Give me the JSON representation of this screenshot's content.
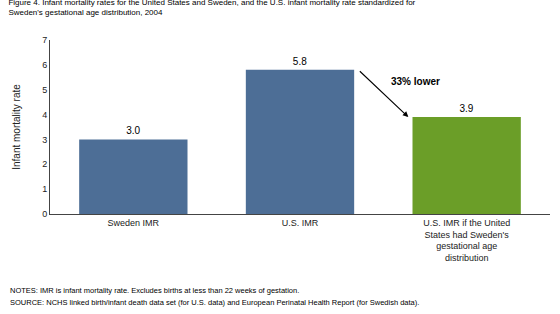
{
  "chart_data": {
    "type": "bar",
    "title": "Figure 4. Infant mortality rates for the United States and Sweden, and the U.S. infant mortality rate standardized for\nSweden's gestational age distribution, 2004",
    "categories": [
      "Sweden IMR",
      "U.S. IMR",
      "U.S. IMR if the United\nStates had Sweden's\ngestational age\ndistribution"
    ],
    "values": [
      3.0,
      5.8,
      3.9
    ],
    "value_labels": [
      "3.0",
      "5.8",
      "3.9"
    ],
    "data_labels": true,
    "colors": [
      "#4d6e96",
      "#4d6e96",
      "#6b9e28"
    ],
    "ylabel": "Infant mortality rate",
    "ylim": [
      0,
      7
    ],
    "yticks": [
      0,
      1,
      2,
      3,
      4,
      5,
      6,
      7
    ],
    "grid": false,
    "annotations": [
      {
        "text": "33% lower"
      }
    ],
    "notes": [
      "NOTES: IMR is infant mortality rate. Excludes births at less than 22 weeks of gestation.",
      "SOURCE: NCHS linked birth/infant death data set (for U.S. data) and European Perinatal Health Report (for Swedish data)."
    ]
  }
}
